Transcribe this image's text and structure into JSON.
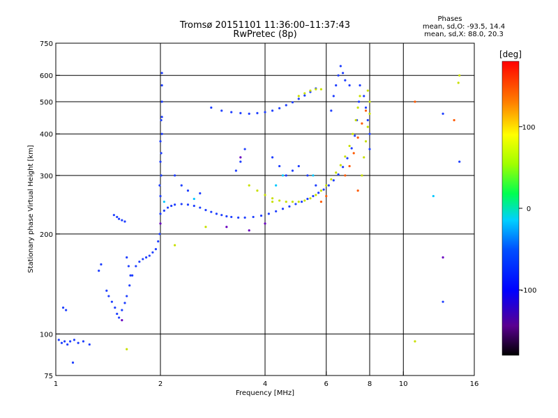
{
  "header": {
    "title_line1": "Tromsø 20151101 11:36:00–11:37:43",
    "title_line2": "RwPretec (8p)"
  },
  "stats": {
    "heading": "Phases",
    "line1": "mean, sd,O: -93.5, 14.4",
    "line2": "mean, sd,X: 88.0, 20.3"
  },
  "chart_data": {
    "type": "scatter",
    "xlabel": "Frequency [MHz]",
    "ylabel": "Stationary phase Virtual Height [km]",
    "x_scale": "log",
    "y_scale": "log",
    "xlim": [
      1,
      16
    ],
    "ylim": [
      75,
      750
    ],
    "x_tick_labels": [
      "1",
      "2",
      "4",
      "6",
      "8",
      "10",
      "16"
    ],
    "x_ticks": [
      1,
      2,
      4,
      6,
      8,
      10,
      16
    ],
    "x_gridlines": [
      2,
      4,
      6,
      8,
      10
    ],
    "y_tick_labels": [
      "75",
      "100",
      "200",
      "300",
      "400",
      "500",
      "600",
      "750"
    ],
    "y_ticks": [
      75,
      100,
      200,
      300,
      400,
      500,
      600,
      750
    ],
    "y_gridlines": [
      100,
      200,
      300,
      400,
      500,
      600
    ],
    "grid": true,
    "colorbar": {
      "label": "[deg]",
      "min": -180,
      "max": 180,
      "tick_labels": [
        "100",
        "0",
        "-100"
      ],
      "ticks": [
        100,
        0,
        -100
      ],
      "colormap": "rainbow"
    },
    "series": [
      {
        "color": "#1f3fff",
        "points": [
          [
            1.02,
            96
          ],
          [
            1.04,
            94
          ],
          [
            1.06,
            95
          ],
          [
            1.08,
            93
          ],
          [
            1.1,
            95
          ],
          [
            1.13,
            96
          ],
          [
            1.16,
            94
          ],
          [
            1.2,
            95
          ],
          [
            1.05,
            120
          ],
          [
            1.07,
            118
          ],
          [
            1.12,
            82
          ],
          [
            1.25,
            93
          ],
          [
            1.4,
            135
          ],
          [
            1.42,
            130
          ],
          [
            1.45,
            125
          ],
          [
            1.48,
            120
          ],
          [
            1.5,
            115
          ],
          [
            1.52,
            112
          ],
          [
            1.55,
            118
          ],
          [
            1.58,
            124
          ],
          [
            1.6,
            130
          ],
          [
            1.63,
            140
          ],
          [
            1.66,
            150
          ],
          [
            1.7,
            160
          ],
          [
            1.74,
            165
          ],
          [
            1.78,
            168
          ],
          [
            1.82,
            170
          ],
          [
            1.86,
            172
          ],
          [
            1.9,
            176
          ],
          [
            1.94,
            180
          ],
          [
            1.97,
            190
          ],
          [
            1.47,
            228
          ],
          [
            1.5,
            225
          ],
          [
            1.52,
            222
          ],
          [
            1.55,
            220
          ],
          [
            1.58,
            218
          ],
          [
            1.35,
            162
          ],
          [
            1.33,
            155
          ],
          [
            1.6,
            170
          ],
          [
            1.62,
            160
          ],
          [
            1.64,
            150
          ],
          [
            1.99,
            200
          ],
          [
            2.0,
            230
          ],
          [
            2.0,
            260
          ],
          [
            2.01,
            300
          ],
          [
            2.01,
            350
          ],
          [
            2.02,
            400
          ],
          [
            2.02,
            450
          ],
          [
            2.02,
            500
          ],
          [
            2.02,
            560
          ],
          [
            2.02,
            610
          ],
          [
            2.01,
            440
          ],
          [
            2.0,
            330
          ],
          [
            1.99,
            280
          ],
          [
            2.0,
            380
          ],
          [
            2.05,
            235
          ],
          [
            2.1,
            240
          ],
          [
            2.15,
            243
          ],
          [
            2.2,
            245
          ],
          [
            2.3,
            246
          ],
          [
            2.4,
            245
          ],
          [
            2.5,
            243
          ],
          [
            2.6,
            240
          ],
          [
            2.7,
            236
          ],
          [
            2.8,
            233
          ],
          [
            2.9,
            230
          ],
          [
            3.0,
            228
          ],
          [
            3.1,
            226
          ],
          [
            3.2,
            225
          ],
          [
            3.35,
            224
          ],
          [
            3.5,
            224
          ],
          [
            3.7,
            225
          ],
          [
            3.9,
            227
          ],
          [
            4.1,
            230
          ],
          [
            4.3,
            234
          ],
          [
            4.5,
            238
          ],
          [
            4.7,
            242
          ],
          [
            4.9,
            246
          ],
          [
            5.1,
            250
          ],
          [
            5.3,
            255
          ],
          [
            5.5,
            260
          ],
          [
            5.7,
            266
          ],
          [
            5.9,
            272
          ],
          [
            6.1,
            280
          ],
          [
            6.3,
            290
          ],
          [
            6.5,
            302
          ],
          [
            6.7,
            318
          ],
          [
            6.9,
            338
          ],
          [
            7.1,
            362
          ],
          [
            7.25,
            395
          ],
          [
            7.35,
            440
          ],
          [
            7.45,
            500
          ],
          [
            7.5,
            560
          ],
          [
            2.8,
            480
          ],
          [
            3.0,
            470
          ],
          [
            3.2,
            465
          ],
          [
            3.4,
            462
          ],
          [
            3.6,
            460
          ],
          [
            3.8,
            462
          ],
          [
            4.0,
            465
          ],
          [
            4.2,
            470
          ],
          [
            4.4,
            478
          ],
          [
            4.6,
            488
          ],
          [
            4.8,
            498
          ],
          [
            5.0,
            510
          ],
          [
            5.2,
            522
          ],
          [
            5.4,
            535
          ],
          [
            5.6,
            548
          ],
          [
            6.2,
            470
          ],
          [
            6.3,
            520
          ],
          [
            6.4,
            560
          ],
          [
            6.5,
            600
          ],
          [
            6.6,
            640
          ],
          [
            6.7,
            610
          ],
          [
            6.8,
            580
          ],
          [
            7.0,
            560
          ],
          [
            3.5,
            360
          ],
          [
            3.4,
            330
          ],
          [
            3.3,
            310
          ],
          [
            4.2,
            340
          ],
          [
            4.4,
            320
          ],
          [
            4.6,
            300
          ],
          [
            4.8,
            310
          ],
          [
            5.0,
            320
          ],
          [
            5.3,
            300
          ],
          [
            5.6,
            280
          ],
          [
            2.3,
            280
          ],
          [
            2.4,
            270
          ],
          [
            2.6,
            265
          ],
          [
            2.2,
            300
          ],
          [
            7.8,
            480
          ],
          [
            7.9,
            440
          ],
          [
            8.0,
            400
          ],
          [
            8.0,
            360
          ],
          [
            7.7,
            520
          ],
          [
            13.0,
            460
          ],
          [
            13.0,
            125
          ],
          [
            14.5,
            330
          ]
        ]
      },
      {
        "color": "#c8e000",
        "points": [
          [
            3.6,
            280
          ],
          [
            3.8,
            270
          ],
          [
            4.0,
            262
          ],
          [
            4.2,
            256
          ],
          [
            4.4,
            252
          ],
          [
            4.6,
            250
          ],
          [
            4.8,
            250
          ],
          [
            5.0,
            250
          ],
          [
            5.2,
            252
          ],
          [
            5.4,
            256
          ],
          [
            5.6,
            262
          ],
          [
            5.8,
            270
          ],
          [
            6.0,
            280
          ],
          [
            6.2,
            292
          ],
          [
            6.4,
            306
          ],
          [
            6.6,
            322
          ],
          [
            6.8,
            342
          ],
          [
            7.0,
            368
          ],
          [
            7.15,
            400
          ],
          [
            7.3,
            440
          ],
          [
            7.4,
            480
          ],
          [
            7.5,
            520
          ],
          [
            7.6,
            300
          ],
          [
            7.7,
            340
          ],
          [
            7.8,
            380
          ],
          [
            7.9,
            420
          ],
          [
            8.0,
            460
          ],
          [
            8.0,
            500
          ],
          [
            7.9,
            540
          ],
          [
            5.0,
            520
          ],
          [
            5.2,
            530
          ],
          [
            5.4,
            540
          ],
          [
            5.6,
            545
          ],
          [
            5.8,
            545
          ],
          [
            1.6,
            90
          ],
          [
            2.2,
            185
          ],
          [
            2.7,
            210
          ],
          [
            4.2,
            250
          ],
          [
            14.5,
            600
          ],
          [
            14.4,
            570
          ],
          [
            10.8,
            95
          ]
        ]
      },
      {
        "color": "#ff5a00",
        "points": [
          [
            6.8,
            300
          ],
          [
            7.0,
            320
          ],
          [
            7.2,
            350
          ],
          [
            7.4,
            390
          ],
          [
            7.6,
            430
          ],
          [
            7.8,
            470
          ],
          [
            7.4,
            270
          ],
          [
            14.0,
            440
          ],
          [
            10.8,
            500
          ],
          [
            6.0,
            260
          ],
          [
            5.8,
            250
          ]
        ]
      },
      {
        "color": "#6a00c0",
        "points": [
          [
            1.55,
            110
          ],
          [
            3.1,
            210
          ],
          [
            3.4,
            340
          ],
          [
            4.0,
            215
          ],
          [
            13.0,
            170
          ],
          [
            2.0,
            215
          ],
          [
            3.6,
            205
          ]
        ]
      },
      {
        "color": "#00c8ff",
        "points": [
          [
            2.05,
            250
          ],
          [
            2.5,
            255
          ],
          [
            4.3,
            280
          ],
          [
            4.5,
            300
          ],
          [
            5.5,
            300
          ],
          [
            12.2,
            260
          ]
        ]
      }
    ]
  }
}
